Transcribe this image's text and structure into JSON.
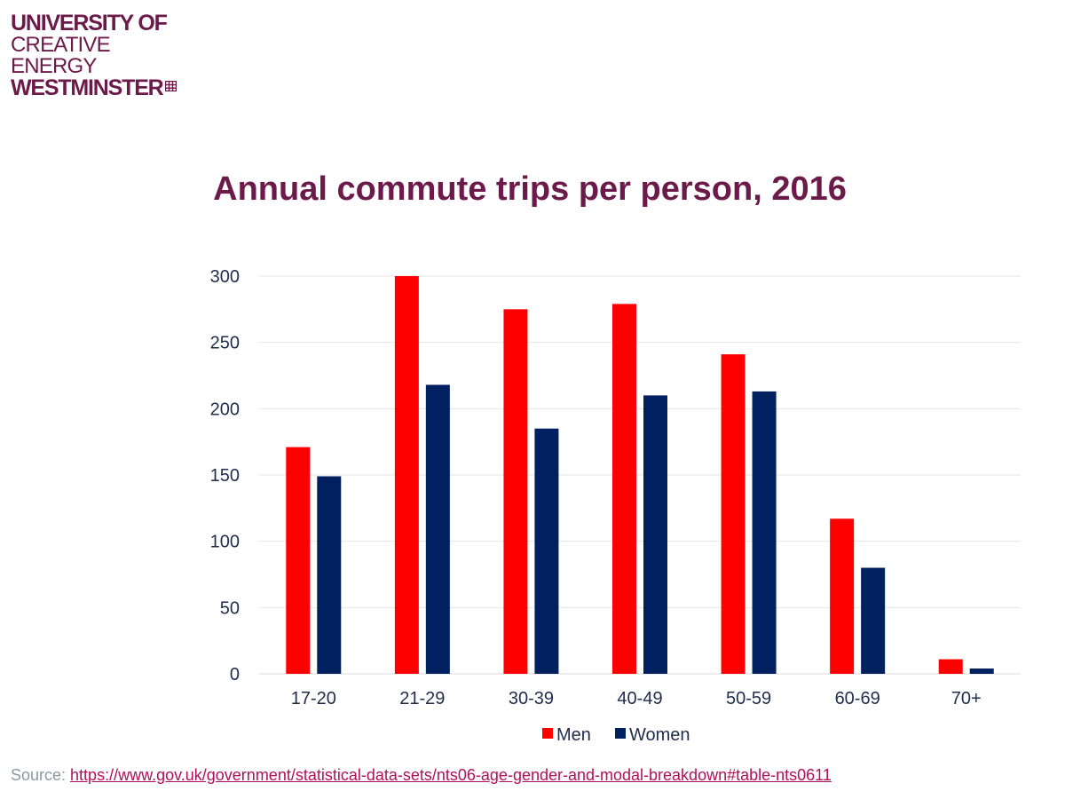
{
  "logo": {
    "line1": "UNIVERSITY OF",
    "line2": "CREATIVE",
    "line3": "ENERGY",
    "line4": "WESTMINSTER"
  },
  "colors": {
    "brand": "#6b1a4a",
    "men": "#ff0000",
    "women": "#002060",
    "axis_text": "#1f2d4d",
    "grid": "#e6e6e6",
    "source_label": "#8a9aa4",
    "link": "#b0105a"
  },
  "chart_data": {
    "type": "bar",
    "title": "Annual commute trips per person, 2016",
    "xlabel": "",
    "ylabel": "",
    "categories": [
      "17-20",
      "21-29",
      "30-39",
      "40-49",
      "50-59",
      "60-69",
      "70+"
    ],
    "series": [
      {
        "name": "Men",
        "values": [
          171,
          300,
          275,
          279,
          241,
          117,
          11
        ]
      },
      {
        "name": "Women",
        "values": [
          149,
          218,
          185,
          210,
          213,
          80,
          4
        ]
      }
    ],
    "ylim": [
      0,
      300
    ],
    "yticks": [
      0,
      50,
      100,
      150,
      200,
      250,
      300
    ],
    "grid": true,
    "legend": "bottom"
  },
  "source": {
    "label": "Source: ",
    "link_text": "https://www.gov.uk/government/statistical-data-sets/nts06-age-gender-and-modal-breakdown#table-nts0611"
  }
}
